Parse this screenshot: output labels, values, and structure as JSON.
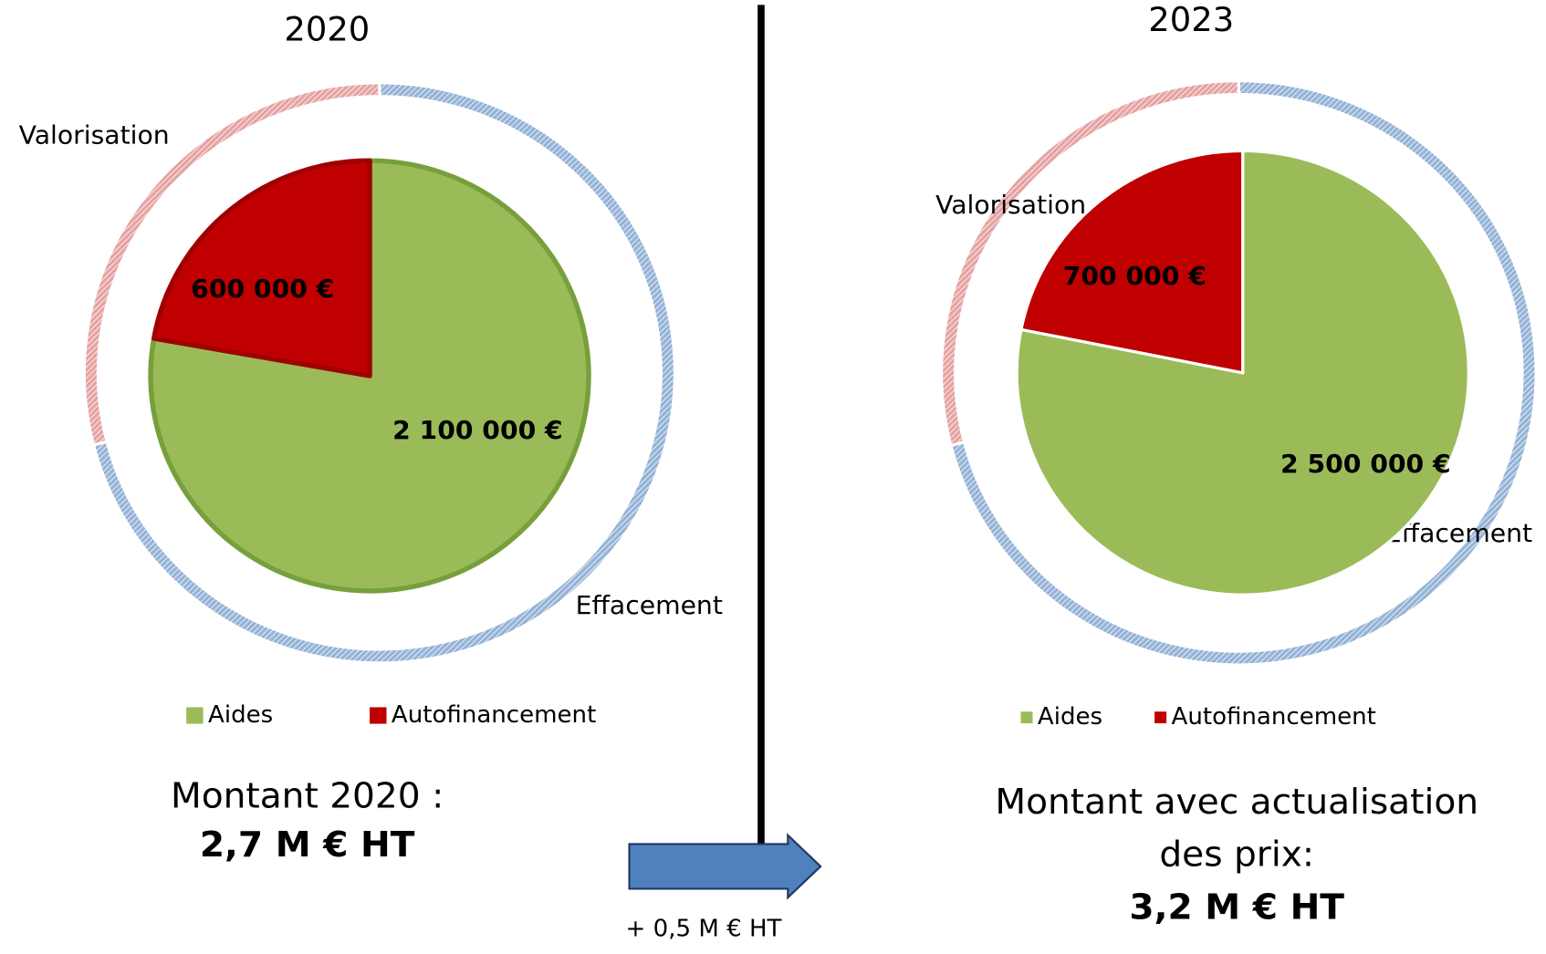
{
  "chart_data": [
    {
      "type": "pie",
      "title": "2020",
      "categories": [
        "Aides",
        "Autofinancement"
      ],
      "values": [
        2100000,
        600000
      ],
      "value_labels": [
        "2 100 000 €",
        "600 000 €"
      ],
      "colors": [
        "#9bbb59",
        "#c00000"
      ],
      "ring": {
        "categories": [
          "Effacement",
          "Valorisation"
        ],
        "values": [
          71,
          29
        ],
        "colors": [
          "#95b3d7",
          "#e6a3a3"
        ]
      },
      "caption": [
        "Montant 2020 :",
        "2,7 M € HT"
      ]
    },
    {
      "type": "pie",
      "title": "2023",
      "categories": [
        "Aides",
        "Autofinancement"
      ],
      "values": [
        2500000,
        700000
      ],
      "value_labels": [
        "2 500 000 €",
        "700 000 €"
      ],
      "colors": [
        "#9bbb59",
        "#c00000"
      ],
      "ring": {
        "categories": [
          "Effacement",
          "Valorisation"
        ],
        "values": [
          71,
          29
        ],
        "colors": [
          "#95b3d7",
          "#e6a3a3"
        ]
      },
      "caption": [
        "Montant avec actualisation",
        "des prix:",
        "3,2 M € HT"
      ]
    }
  ],
  "annotation": "+ 0,5 M € HT"
}
